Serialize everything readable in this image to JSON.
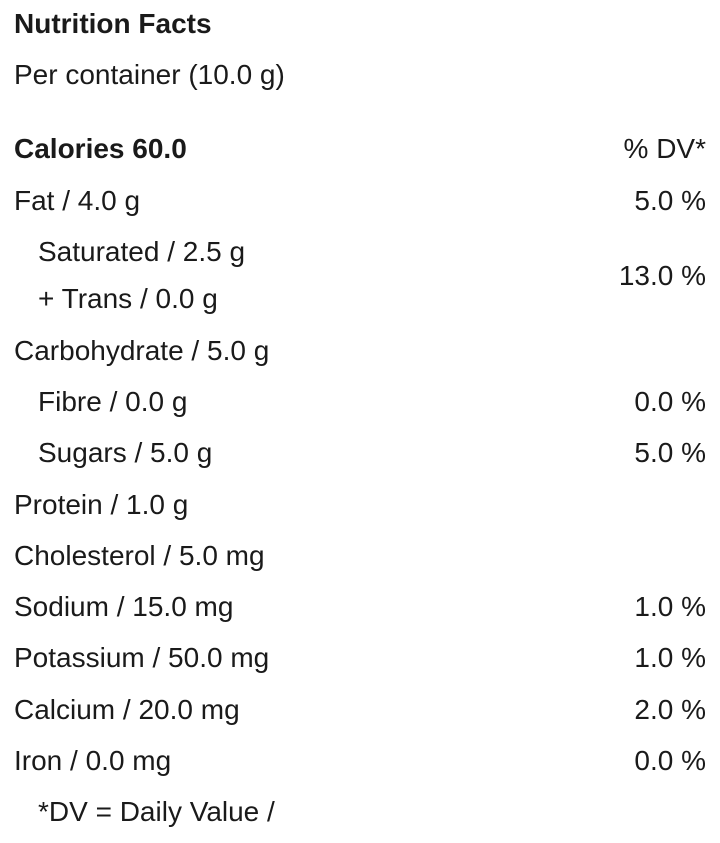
{
  "title": "Nutrition Facts",
  "serving": "Per container (10.0 g)",
  "header": {
    "calories": "Calories 60.0",
    "dv": "% DV*"
  },
  "rows": [
    {
      "lines": [
        "Fat / 4.0 g"
      ],
      "dv": "5.0 %",
      "sub": [
        {
          "lines": [
            "Saturated / 2.5 g",
            "+ Trans / 0.0 g"
          ],
          "dv": "13.0 %"
        }
      ]
    },
    {
      "lines": [
        "Carbohydrate / 5.0 g"
      ],
      "sub": [
        {
          "lines": [
            "Fibre / 0.0 g"
          ],
          "dv": "0.0 %"
        },
        {
          "lines": [
            "Sugars / 5.0 g"
          ],
          "dv": "5.0 %"
        }
      ]
    },
    {
      "lines": [
        "Protein / 1.0 g"
      ]
    },
    {
      "lines": [
        "Cholesterol / 5.0 mg"
      ]
    },
    {
      "lines": [
        "Sodium / 15.0 mg"
      ],
      "dv": "1.0 %"
    },
    {
      "lines": [
        "Potassium / 50.0 mg"
      ],
      "dv": "1.0 %"
    },
    {
      "lines": [
        "Calcium / 20.0 mg"
      ],
      "dv": "2.0 %"
    },
    {
      "lines": [
        "Iron / 0.0 mg"
      ],
      "dv": "0.0 %"
    }
  ],
  "footnote": "*DV = Daily Value /"
}
